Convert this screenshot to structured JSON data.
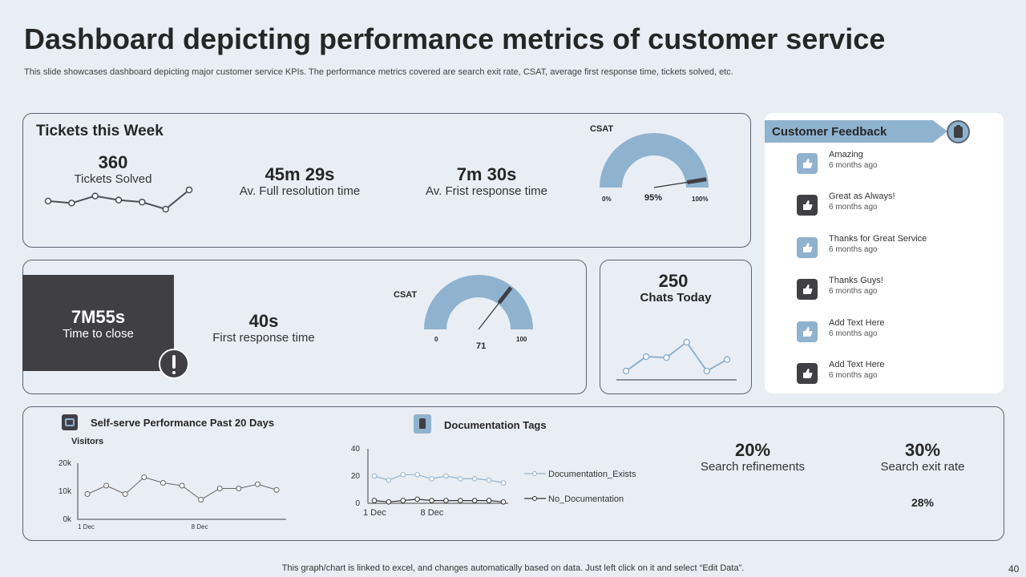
{
  "header": {
    "title": "Dashboard depicting performance metrics of customer service",
    "subtitle": "This slide showcases dashboard depicting major customer service KPIs. The performance metrics covered are search exit rate, CSAT,  average first response time, tickets solved, etc."
  },
  "tickets": {
    "title": "Tickets this Week",
    "solved_value": "360",
    "solved_label": "Tickets Solved",
    "resolution_value": "45m 29s",
    "resolution_label": "Av. Full resolution time",
    "first_resp_value": "7m 30s",
    "first_resp_label": "Av. Frist response time",
    "csat_label": "CSAT",
    "gauge_min": "0%",
    "gauge_value": "95%",
    "gauge_max": "100%",
    "gauge_level": 0.95
  },
  "close": {
    "value": "7M55s",
    "label": "Time to close",
    "first_resp_value": "40s",
    "first_resp_label": "First response time",
    "csat_label": "CSAT",
    "gauge_min": "0",
    "gauge_value": "71",
    "gauge_max": "100",
    "gauge_level": 0.71
  },
  "chats": {
    "value": "250",
    "label": "Chats Today"
  },
  "feedback": {
    "title": "Customer Feedback",
    "items": [
      {
        "title": "Amazing",
        "time": "6 months ago",
        "color": "#8fb2cf"
      },
      {
        "title": "Great as Always!",
        "time": "6 months ago",
        "color": "#3f3f44"
      },
      {
        "title": "Thanks for Great Service",
        "time": "6 months ago",
        "color": "#8fb2cf"
      },
      {
        "title": "Thanks Guys!",
        "time": "6 months ago",
        "color": "#3f3f44"
      },
      {
        "title": "Add Text Here",
        "time": "6 months ago",
        "color": "#8fb2cf"
      },
      {
        "title": "Add Text Here",
        "time": "6 months ago",
        "color": "#3f3f44"
      }
    ]
  },
  "bottom": {
    "self_serve_title": "Self-serve Performance Past 20 Days",
    "doc_tags_title": "Documentation Tags",
    "search_ref_value": "20%",
    "search_ref_label": "Search refinements",
    "search_exit_value": "30%",
    "search_exit_label": "Search exit rate",
    "extra_value": "28%"
  },
  "footer": {
    "note": "This graph/chart is linked to excel,  and changes automatically based on data. Just left click on it and select “Edit Data”.",
    "page": "40"
  },
  "colors": {
    "accent": "#8fb2cf",
    "dark": "#3f3f44",
    "line": "#5a6472"
  },
  "chart_data": [
    {
      "type": "line",
      "name": "tickets-sparkline",
      "values": [
        2,
        1.8,
        2.5,
        2.1,
        1.9,
        1.2,
        3.1
      ]
    },
    {
      "type": "line",
      "name": "chats-sparkline",
      "values": [
        2,
        3.5,
        3.4,
        5,
        2,
        3.2
      ]
    },
    {
      "type": "line",
      "title": "Visitors",
      "x_tick_labels": [
        "1 Dec",
        "8 Dec"
      ],
      "y_ticks": [
        "0k",
        "10k",
        "20k"
      ],
      "ylim": [
        0,
        20
      ],
      "values": [
        9,
        12,
        9,
        15,
        13,
        12,
        7,
        11,
        11,
        12.5,
        10.5
      ]
    },
    {
      "type": "line",
      "x_tick_labels": [
        "1 Dec",
        "8 Dec"
      ],
      "y_ticks": [
        "0",
        "20",
        "40"
      ],
      "ylim": [
        0,
        40
      ],
      "series": [
        {
          "name": "Documentation_Exists",
          "values": [
            20,
            17,
            21,
            21,
            18,
            20,
            18,
            18,
            17,
            15
          ]
        },
        {
          "name": "No_Documentation",
          "values": [
            2,
            1,
            2,
            3,
            2,
            2,
            2,
            2,
            2,
            1
          ]
        }
      ]
    }
  ]
}
